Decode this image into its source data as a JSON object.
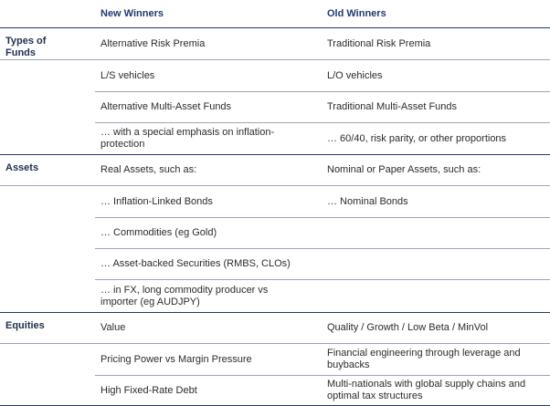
{
  "header": {
    "columns": [
      "New Winners",
      "Old Winners"
    ]
  },
  "sections": [
    {
      "label": "Types of Funds",
      "rows": [
        [
          "Alternative Risk Premia",
          "Traditional Risk Premia"
        ],
        [
          "L/S vehicles",
          "L/O vehicles"
        ],
        [
          "Alternative Multi-Asset Funds",
          "Traditional Multi-Asset Funds"
        ],
        [
          "… with a special emphasis on inflation-protection",
          "… 60/40, risk parity, or other proportions"
        ]
      ]
    },
    {
      "label": "Assets",
      "rows": [
        [
          "Real Assets, such as:",
          "Nominal or Paper Assets, such as:"
        ],
        [
          "… Inflation-Linked Bonds",
          "… Nominal Bonds"
        ],
        [
          "… Commodities (eg Gold)",
          null
        ],
        [
          "… Asset-backed Securities (RMBS, CLOs)",
          null
        ],
        [
          "… in FX, long commodity producer vs importer (eg AUDJPY)",
          null
        ]
      ]
    },
    {
      "label": "Equities",
      "rows": [
        [
          "Value",
          "Quality / Growth / Low Beta / MinVol"
        ],
        [
          "Pricing Power vs Margin Pressure",
          "Financial engineering through leverage and buybacks"
        ],
        [
          "High Fixed-Rate Debt",
          "Multi-nationals with global supply chains and optimal tax structures"
        ]
      ]
    }
  ]
}
